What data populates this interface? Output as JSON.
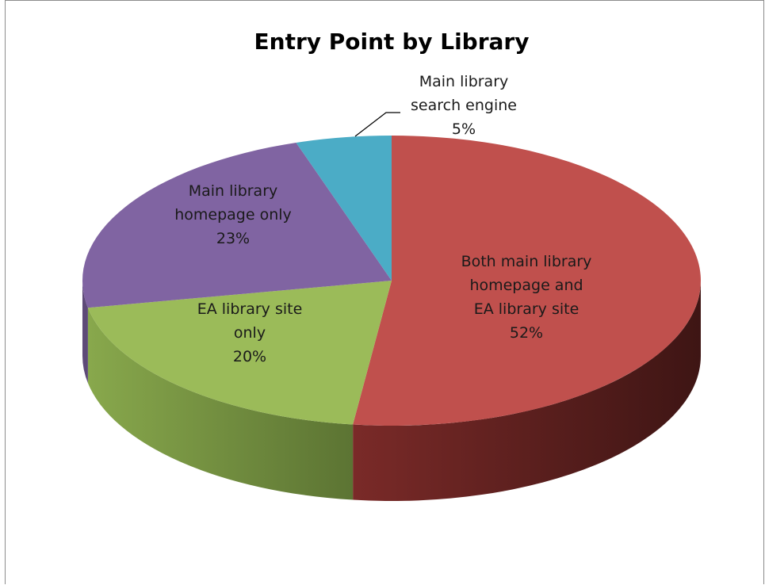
{
  "chart_data": {
    "type": "pie",
    "title": "Entry Point by Library",
    "slices": [
      {
        "label_lines": [
          "Both main library",
          "homepage and",
          "EA library site"
        ],
        "pct_label": "52%",
        "value": 52,
        "color": "#c0504d"
      },
      {
        "label_lines": [
          "EA library site",
          "only"
        ],
        "pct_label": "20%",
        "value": 20,
        "color": "#9bbb59"
      },
      {
        "label_lines": [
          "Main library",
          "homepage only"
        ],
        "pct_label": "23%",
        "value": 23,
        "color": "#8064a2"
      },
      {
        "label_lines": [
          "Main library",
          "search engine"
        ],
        "pct_label": "5%",
        "value": 5,
        "color": "#4bacc6"
      }
    ],
    "style": "3d-pie",
    "legend": "none"
  }
}
